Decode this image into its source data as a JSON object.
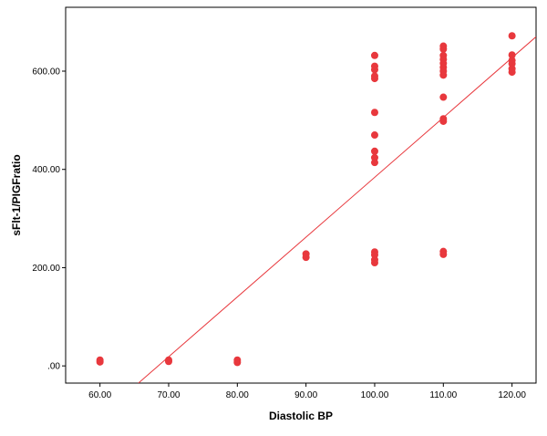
{
  "chart_data": {
    "type": "scatter",
    "title": "",
    "xlabel": "Diastolic BP",
    "ylabel": "sFlt-1/PIGFratio",
    "xlim": [
      55,
      123.5
    ],
    "ylim": [
      -35,
      730
    ],
    "x_ticks": [
      60,
      70,
      80,
      90,
      100,
      110,
      120
    ],
    "x_tick_labels": [
      "60.00",
      "70.00",
      "80.00",
      "90.00",
      "100.00",
      "110.00",
      "120.00"
    ],
    "y_ticks": [
      0,
      200,
      400,
      600
    ],
    "y_tick_labels": [
      ".00",
      "200.00",
      "400.00",
      "600.00"
    ],
    "grid": false,
    "legend": "none",
    "point_color": "#e8383d",
    "fit_line_color": "#e8383d",
    "fit_line": {
      "type": "linear",
      "from": [
        65.6,
        -35
      ],
      "to": [
        123.5,
        670
      ]
    },
    "points": [
      {
        "x": 60,
        "y": 12
      },
      {
        "x": 60,
        "y": 8
      },
      {
        "x": 70,
        "y": 12
      },
      {
        "x": 70,
        "y": 9
      },
      {
        "x": 80,
        "y": 12
      },
      {
        "x": 80,
        "y": 7
      },
      {
        "x": 90,
        "y": 228
      },
      {
        "x": 90,
        "y": 221
      },
      {
        "x": 100,
        "y": 632
      },
      {
        "x": 100,
        "y": 610
      },
      {
        "x": 100,
        "y": 603
      },
      {
        "x": 100,
        "y": 590
      },
      {
        "x": 100,
        "y": 585
      },
      {
        "x": 100,
        "y": 516
      },
      {
        "x": 100,
        "y": 470
      },
      {
        "x": 100,
        "y": 437
      },
      {
        "x": 100,
        "y": 424
      },
      {
        "x": 100,
        "y": 414
      },
      {
        "x": 100,
        "y": 232
      },
      {
        "x": 100,
        "y": 226
      },
      {
        "x": 100,
        "y": 216
      },
      {
        "x": 100,
        "y": 210
      },
      {
        "x": 110,
        "y": 651
      },
      {
        "x": 110,
        "y": 645
      },
      {
        "x": 110,
        "y": 632
      },
      {
        "x": 110,
        "y": 624
      },
      {
        "x": 110,
        "y": 616
      },
      {
        "x": 110,
        "y": 608
      },
      {
        "x": 110,
        "y": 600
      },
      {
        "x": 110,
        "y": 592
      },
      {
        "x": 110,
        "y": 547
      },
      {
        "x": 110,
        "y": 503
      },
      {
        "x": 110,
        "y": 498
      },
      {
        "x": 110,
        "y": 233
      },
      {
        "x": 110,
        "y": 227
      },
      {
        "x": 120,
        "y": 672
      },
      {
        "x": 120,
        "y": 633
      },
      {
        "x": 120,
        "y": 622
      },
      {
        "x": 120,
        "y": 615
      },
      {
        "x": 120,
        "y": 605
      },
      {
        "x": 120,
        "y": 598
      }
    ]
  }
}
